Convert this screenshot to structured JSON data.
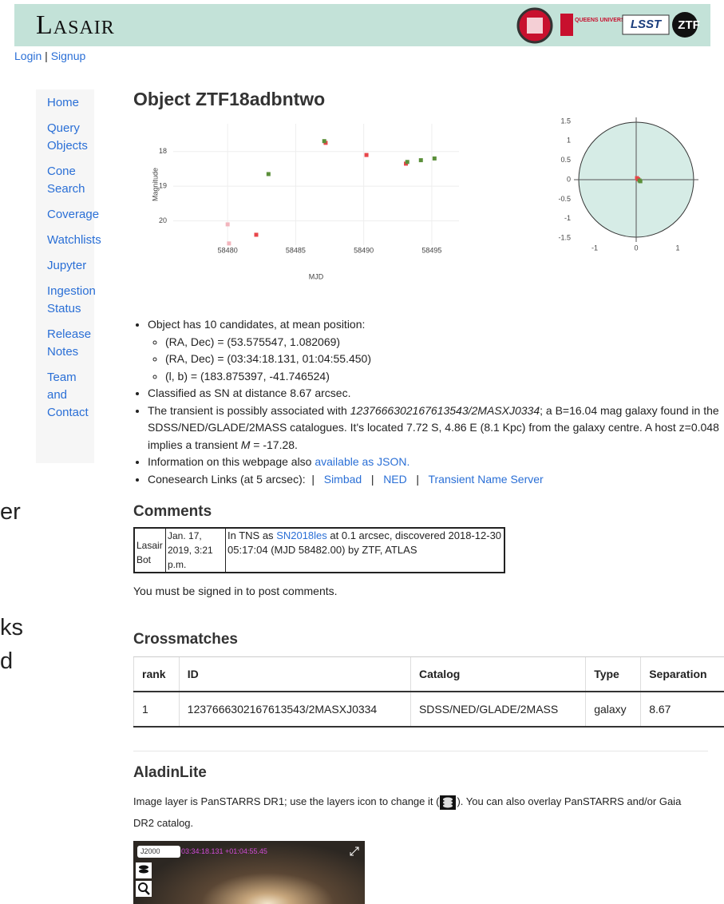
{
  "header": {
    "logo": "Lasair",
    "partners": [
      "QUEENS UNIVERSITY BELFAST",
      "LSST",
      "ZTF"
    ]
  },
  "auth": {
    "links": [
      "Login",
      "Signup"
    ],
    "separator": "|"
  },
  "nav": [
    "Home",
    "Query Objects",
    "Cone Search",
    "Coverage",
    "Watchlists",
    "Jupyter",
    "Ingestion Status",
    "Release Notes",
    "Team and Contact"
  ],
  "side_fragments": [
    "er",
    "ks",
    "d"
  ],
  "object": {
    "title": "Object ZTF18adbntwo"
  },
  "lightcurve": {
    "type": "scatter",
    "x_label": "MJD",
    "y_label": "Magnitude",
    "xlim": [
      58476,
      58497
    ],
    "ylim": [
      17.2,
      20.7
    ],
    "y_inverted": true,
    "xticks": [
      58480,
      58485,
      58490,
      58495
    ],
    "yticks": [
      18,
      19,
      20
    ],
    "grid": true,
    "series": [
      {
        "color": "#e8464a",
        "x": [
          58482.1,
          58487.2,
          58490.2,
          58493.1
        ],
        "values": [
          20.4,
          17.75,
          18.1,
          18.35
        ]
      },
      {
        "color": "#5b8f3a",
        "x": [
          58483.0,
          58487.1,
          58493.2,
          58494.2,
          58495.2
        ],
        "values": [
          18.65,
          17.7,
          18.3,
          18.25,
          18.2
        ]
      },
      {
        "color": "#f2b5bd",
        "x": [
          58480.0,
          58480.1
        ],
        "values": [
          20.1,
          20.65
        ]
      }
    ]
  },
  "position_plot": {
    "type": "scatter",
    "xlim": [
      -1.5,
      1.5
    ],
    "ylim": [
      -1.6,
      1.6
    ],
    "xticks": [
      -1,
      0,
      1
    ],
    "yticks": [
      1.5,
      1,
      0.5,
      0,
      -0.5,
      -1,
      -1.5
    ],
    "series": [
      {
        "color": "#e8464a",
        "x": [
          0.02,
          0.05
        ],
        "values": [
          0.04,
          0.01
        ]
      },
      {
        "color": "#5b8f3a",
        "x": [
          0.08,
          0.1
        ],
        "values": [
          -0.02,
          -0.04
        ]
      }
    ]
  },
  "info": {
    "candidates": "Object has 10 candidates, at mean position:",
    "positions": [
      "(RA, Dec) = (53.575547, 1.082069)",
      "(RA, Dec) = (03:34:18.131, 01:04:55.450)",
      "(l, b) = (183.875397, -41.746524)"
    ],
    "classified": "Classified as SN at distance 8.67 arcsec.",
    "assoc": [
      "The transient is possibly associated with ",
      "1237666302167613543/2MASXJ0334",
      "; a B=16.04 mag galaxy found in the SDSS/NED/GLADE/2MASS catalogues. It's located 7.72 S, 4.86 E (8.1 Kpc) from the galaxy centre. A host z=0.048 implies a transient ",
      "M",
      " = -17.28."
    ],
    "json": [
      "Information on this webpage also ",
      "available as JSON."
    ],
    "cone": {
      "label": "Conesearch Links (at 5 arcsec):",
      "separator": "|",
      "links": [
        "Simbad",
        "NED",
        "Transient Name Server"
      ]
    }
  },
  "comments": {
    "title": "Comments",
    "author": "Lasair Bot",
    "date": "Jan. 17, 2019, 3:21 p.m.",
    "text": [
      "In TNS as ",
      "SN2018les",
      " at 0.1 arcsec, discovered 2018-12-30 05:17:04 (MJD 58482.00) by ZTF, ATLAS"
    ],
    "note": "You must be signed in to post comments."
  },
  "crossmatches": {
    "title": "Crossmatches",
    "header": [
      "rank",
      "ID",
      "Catalog",
      "Type",
      "Separation"
    ],
    "rows": [
      [
        "1",
        "1237666302167613543/2MASXJ0334",
        "SDSS/NED/GLADE/2MASS",
        "galaxy",
        "8.67"
      ]
    ]
  },
  "aladin": {
    "title": "AladinLite",
    "text": [
      "Image layer is PanSTARRS DR1; use the layers icon to change it (",
      "). You can also overlay PanSTARRS and/or Gaia DR2 catalog."
    ],
    "frame": "J2000",
    "coords": "03:34:18.131 +01:04:55.45"
  }
}
